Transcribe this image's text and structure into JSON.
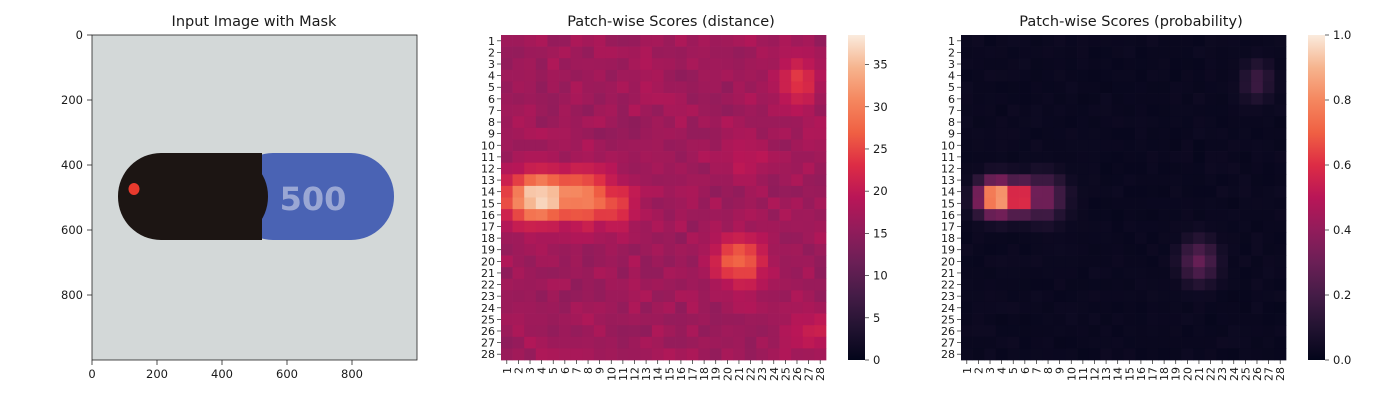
{
  "chart_data": [
    {
      "type": "image",
      "title": "Input Image with Mask",
      "xticks": [
        0,
        200,
        400,
        600,
        800
      ],
      "yticks": [
        0,
        200,
        400,
        600,
        800
      ],
      "xlim": [
        0,
        1000
      ],
      "ylim": [
        1000,
        0
      ],
      "capsule_text": "500",
      "colors": {
        "background": "#d3d8d8",
        "cap": "#1c1513",
        "body": "#4a63b4",
        "mask": "#e83a2d",
        "print": "#9aa7d4"
      }
    },
    {
      "type": "heatmap",
      "title": "Patch-wise Scores (distance)",
      "rows": [
        "1",
        "2",
        "3",
        "4",
        "5",
        "6",
        "7",
        "8",
        "9",
        "10",
        "11",
        "12",
        "13",
        "14",
        "15",
        "16",
        "17",
        "18",
        "19",
        "20",
        "21",
        "22",
        "23",
        "24",
        "25",
        "26",
        "27",
        "28"
      ],
      "cols": [
        "1",
        "2",
        "3",
        "4",
        "5",
        "6",
        "7",
        "8",
        "9",
        "10",
        "11",
        "12",
        "13",
        "14",
        "15",
        "16",
        "17",
        "18",
        "19",
        "20",
        "21",
        "22",
        "23",
        "24",
        "25",
        "26",
        "27",
        "28"
      ],
      "colorbar": {
        "min": 0,
        "max": 38.5,
        "ticks": [
          0,
          5,
          10,
          15,
          20,
          25,
          30,
          35
        ]
      },
      "colormap": "rocket",
      "background": 16,
      "hotspots": [
        {
          "row": 14.5,
          "col": 4,
          "peak": 38,
          "rx": 2.3,
          "ry": 1.5
        },
        {
          "row": 14.5,
          "col": 7.5,
          "peak": 31,
          "rx": 2.2,
          "ry": 1.6
        },
        {
          "row": 15,
          "col": 10,
          "peak": 26,
          "rx": 1.6,
          "ry": 1.4
        },
        {
          "row": 20,
          "col": 21,
          "peak": 28,
          "rx": 1.6,
          "ry": 1.5
        },
        {
          "row": 4.5,
          "col": 26,
          "peak": 24,
          "rx": 1.4,
          "ry": 1.6
        },
        {
          "row": 26,
          "col": 27,
          "peak": 21,
          "rx": 1.6,
          "ry": 1.2
        },
        {
          "row": 11,
          "col": 21.5,
          "peak": 20,
          "rx": 1.5,
          "ry": 1.3
        }
      ]
    },
    {
      "type": "heatmap",
      "title": "Patch-wise Scores (probability)",
      "rows": [
        "1",
        "2",
        "3",
        "4",
        "5",
        "6",
        "7",
        "8",
        "9",
        "10",
        "11",
        "12",
        "13",
        "14",
        "15",
        "16",
        "17",
        "18",
        "19",
        "20",
        "21",
        "22",
        "23",
        "24",
        "25",
        "26",
        "27",
        "28"
      ],
      "cols": [
        "1",
        "2",
        "3",
        "4",
        "5",
        "6",
        "7",
        "8",
        "9",
        "10",
        "11",
        "12",
        "13",
        "14",
        "15",
        "16",
        "17",
        "18",
        "19",
        "20",
        "21",
        "22",
        "23",
        "24",
        "25",
        "26",
        "27",
        "28"
      ],
      "colorbar": {
        "min": 0,
        "max": 1.0,
        "ticks": [
          "0.0",
          "0.2",
          "0.4",
          "0.6",
          "0.8",
          "1.0"
        ]
      },
      "colormap": "rocket",
      "background": 0.02,
      "hotspots": [
        {
          "row": 14.5,
          "col": 3.6,
          "peak": 1.0,
          "rx": 1.1,
          "ry": 1.0
        },
        {
          "row": 14.5,
          "col": 5.5,
          "peak": 0.75,
          "rx": 1.0,
          "ry": 1.0
        },
        {
          "row": 14.5,
          "col": 7.5,
          "peak": 0.35,
          "rx": 1.3,
          "ry": 1.3
        },
        {
          "row": 20,
          "col": 21,
          "peak": 0.28,
          "rx": 1.1,
          "ry": 1.3
        },
        {
          "row": 4.5,
          "col": 26,
          "peak": 0.18,
          "rx": 0.9,
          "ry": 1.2
        }
      ]
    }
  ]
}
